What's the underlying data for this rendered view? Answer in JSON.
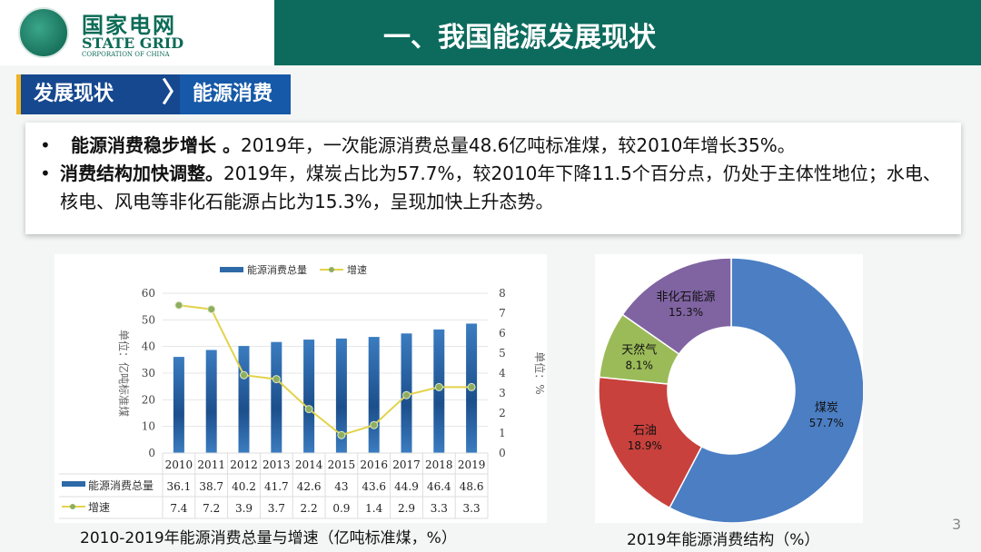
{
  "logo": {
    "cn": "国家电网",
    "en": "STATE GRID",
    "sub": "CORPORATION OF CHINA"
  },
  "header": {
    "title": "一、我国能源发展现状"
  },
  "breadcrumb": {
    "section": "发展现状",
    "sub": "能源消费"
  },
  "bullets": [
    {
      "dot": "•",
      "bold": "能源消费稳步增长 。",
      "text": "2019年，一次能源消费总量48.6亿吨标准煤，较2010年增长35%。"
    },
    {
      "dot": "•",
      "bold": "消费结构加快调整。",
      "text": "2019年，煤炭占比为57.7%，较2010年下降11.5个百分点，仍处于主体性地位；水电、核电、风电等非化石能源占比为15.3%，呈现加快上升态势。"
    }
  ],
  "chart_data": [
    {
      "type": "bar",
      "title": "2010-2019年能源消费总量与增速（亿吨标准煤，%）",
      "categories": [
        "2010",
        "2011",
        "2012",
        "2013",
        "2014",
        "2015",
        "2016",
        "2017",
        "2018",
        "2019"
      ],
      "series": [
        {
          "name": "能源消费总量",
          "type": "bar",
          "axis": "left",
          "values": [
            36.1,
            38.7,
            40.2,
            41.7,
            42.6,
            43,
            43.6,
            44.9,
            46.4,
            48.6
          ],
          "color": "#2e6aa8"
        },
        {
          "name": "增速",
          "type": "line",
          "axis": "right",
          "values": [
            7.4,
            7.2,
            3.9,
            3.7,
            2.2,
            0.9,
            1.4,
            2.9,
            3.3,
            3.3
          ],
          "color": "#e3d34a"
        }
      ],
      "ylabel": "单位：亿吨标准煤",
      "y2label": "单位：%",
      "ylim": [
        0,
        60
      ],
      "yticks": [
        "0",
        "10",
        "20",
        "30",
        "40",
        "50",
        "60"
      ],
      "y2lim": [
        0,
        8
      ],
      "y2ticks": [
        "0",
        "1",
        "2",
        "3",
        "4",
        "5",
        "6",
        "7",
        "8"
      ],
      "legend": "top",
      "grid": true
    },
    {
      "type": "pie",
      "title": "2019年能源消费结构（%）",
      "slices": [
        {
          "label": "煤炭",
          "value": 57.7,
          "text": "57.7%",
          "color": "#4b7ec3"
        },
        {
          "label": "石油",
          "value": 18.9,
          "text": "18.9%",
          "color": "#c8413d"
        },
        {
          "label": "天然气",
          "value": 8.1,
          "text": "8.1%",
          "color": "#9bbb59"
        },
        {
          "label": "非化石能源",
          "value": 15.3,
          "text": "15.3%",
          "color": "#8064a2"
        }
      ]
    }
  ],
  "page_number": "3"
}
